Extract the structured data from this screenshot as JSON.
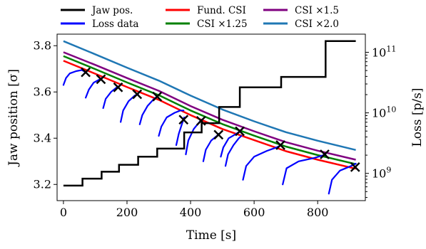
{
  "chart_data": {
    "type": "line",
    "xlabel": "Time [s]",
    "ylabel_left": "Jaw position [σ]",
    "ylabel_right": "Loss [p/s]",
    "xlim": [
      -20,
      950
    ],
    "ylim_left": [
      3.13,
      3.85
    ],
    "right_axis_log": true,
    "ylim_right_log10": [
      8.55,
      11.3
    ],
    "x_ticks": [
      "0",
      "200",
      "400",
      "600",
      "800"
    ],
    "x_tick_values": [
      0,
      200,
      400,
      600,
      800
    ],
    "y_left_ticks": [
      "3.2",
      "3.4",
      "3.6",
      "3.8"
    ],
    "y_left_tick_values": [
      3.2,
      3.4,
      3.6,
      3.8
    ],
    "y_right_ticks": [
      {
        "base": "10",
        "exp": "9",
        "value": 1000000000.0
      },
      {
        "base": "10",
        "exp": "10",
        "value": 10000000000.0
      },
      {
        "base": "10",
        "exp": "11",
        "value": 100000000000.0
      }
    ],
    "legend_placement": "top, outside, 3 columns",
    "legend": [
      {
        "label": "Jaw pos.",
        "color": "#000000"
      },
      {
        "label": "Loss data",
        "color": "#0000ff"
      },
      {
        "label": "Fund. CSI",
        "color": "#ff0000"
      },
      {
        "label": "CSI ×1.25",
        "color": "#008000"
      },
      {
        "label": "CSI ×1.5",
        "color": "#800080"
      },
      {
        "label": "CSI ×2.0",
        "color": "#1f77b4"
      }
    ],
    "series": [
      {
        "name": "Jaw pos.",
        "axis": "left",
        "color": "#000000",
        "step": true,
        "x": [
          0,
          60,
          60,
          120,
          120,
          175,
          175,
          235,
          235,
          295,
          295,
          380,
          380,
          435,
          435,
          490,
          490,
          555,
          555,
          685,
          685,
          825,
          825,
          920
        ],
        "y": [
          3.195,
          3.195,
          3.225,
          3.225,
          3.255,
          3.255,
          3.285,
          3.285,
          3.32,
          3.32,
          3.355,
          3.355,
          3.425,
          3.425,
          3.465,
          3.465,
          3.535,
          3.535,
          3.62,
          3.62,
          3.665,
          3.665,
          3.82,
          3.82
        ]
      },
      {
        "name": "Fund. CSI",
        "axis": "left",
        "color": "#ff0000",
        "x": [
          0,
          100,
          200,
          300,
          400,
          500,
          600,
          700,
          800,
          920
        ],
        "y": [
          3.735,
          3.679,
          3.621,
          3.566,
          3.5,
          3.44,
          3.392,
          3.344,
          3.307,
          3.268
        ]
      },
      {
        "name": "CSI ×1.25",
        "axis": "left",
        "color": "#008000",
        "x": [
          0,
          100,
          200,
          300,
          400,
          500,
          600,
          700,
          800,
          920
        ],
        "y": [
          3.755,
          3.699,
          3.641,
          3.586,
          3.52,
          3.461,
          3.411,
          3.364,
          3.327,
          3.288
        ]
      },
      {
        "name": "CSI ×1.5",
        "axis": "left",
        "color": "#800080",
        "x": [
          0,
          100,
          200,
          300,
          400,
          500,
          600,
          700,
          800,
          920
        ],
        "y": [
          3.772,
          3.717,
          3.66,
          3.605,
          3.539,
          3.48,
          3.43,
          3.383,
          3.346,
          3.307
        ]
      },
      {
        "name": "CSI ×2.0",
        "axis": "left",
        "color": "#1f77b4",
        "x": [
          0,
          100,
          200,
          300,
          400,
          500,
          600,
          700,
          800,
          920
        ],
        "y": [
          3.82,
          3.763,
          3.705,
          3.649,
          3.584,
          3.524,
          3.473,
          3.426,
          3.389,
          3.349
        ]
      },
      {
        "name": "Loss data",
        "axis": "left",
        "color": "#0000ff",
        "segments": [
          {
            "x": [
              0,
              8,
              20,
              40,
              58,
              70
            ],
            "y": [
              3.63,
              3.66,
              3.68,
              3.69,
              3.695,
              3.685
            ]
          },
          {
            "x": [
              70,
              80,
              95,
              115,
              120
            ],
            "y": [
              3.575,
              3.61,
              3.64,
              3.655,
              3.66
            ]
          },
          {
            "x": [
              125,
              133,
              150,
              168,
              175
            ],
            "y": [
              3.53,
              3.57,
              3.6,
              3.62,
              3.625
            ]
          },
          {
            "x": [
              180,
              188,
              205,
              225,
              235
            ],
            "y": [
              3.47,
              3.52,
              3.56,
              3.585,
              3.59
            ]
          },
          {
            "x": [
              240,
              248,
              265,
              285,
              295
            ],
            "y": [
              3.46,
              3.5,
              3.54,
              3.57,
              3.58
            ]
          },
          {
            "x": [
              300,
              308,
              325,
              350,
              368,
              378
            ],
            "y": [
              3.41,
              3.45,
              3.49,
              3.51,
              3.52,
              3.52
            ]
          },
          {
            "x": [
              355,
              363,
              375,
              380
            ],
            "y": [
              3.37,
              3.42,
              3.47,
              3.49
            ]
          },
          {
            "x": [
              385,
              393,
              410,
              428,
              435
            ],
            "y": [
              3.33,
              3.39,
              3.44,
              3.47,
              3.48
            ]
          },
          {
            "x": [
              440,
              448,
              465,
              483,
              490
            ],
            "y": [
              3.3,
              3.35,
              3.39,
              3.41,
              3.42
            ]
          },
          {
            "x": [
              495,
              503,
              520,
              545,
              555
            ],
            "y": [
              3.32,
              3.36,
              3.4,
              3.42,
              3.43
            ]
          },
          {
            "x": [
              510,
              518,
              535,
              552,
              560
            ],
            "y": [
              3.28,
              3.33,
              3.37,
              3.4,
              3.41
            ]
          },
          {
            "x": [
              565,
              575,
              600,
              640,
              670,
              685
            ],
            "y": [
              3.22,
              3.28,
              3.32,
              3.345,
              3.36,
              3.37
            ]
          },
          {
            "x": [
              690,
              702,
              740,
              790,
              815,
              825
            ],
            "y": [
              3.2,
              3.27,
              3.3,
              3.315,
              3.325,
              3.33
            ]
          },
          {
            "x": [
              835,
              845,
              870,
              905,
              920
            ],
            "y": [
              3.16,
              3.22,
              3.26,
              3.28,
              3.29
            ]
          }
        ]
      }
    ],
    "markers": {
      "symbol": "×",
      "color": "#000000",
      "x": [
        70,
        118,
        172,
        232,
        295,
        378,
        433,
        488,
        555,
        683,
        822,
        918
      ],
      "y": [
        3.685,
        3.655,
        3.62,
        3.59,
        3.58,
        3.48,
        3.475,
        3.415,
        3.43,
        3.37,
        3.33,
        3.275
      ]
    }
  }
}
